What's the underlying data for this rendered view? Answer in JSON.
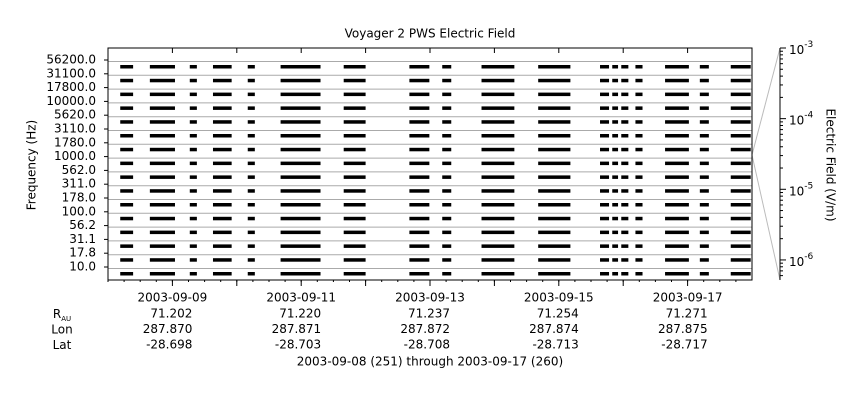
{
  "chart_data": {
    "type": "spectrogram",
    "title": "Voyager 2 PWS Electric Field",
    "ylabel": "Frequency (Hz)",
    "categories": [
      "56200.0",
      "31100.0",
      "17800.0",
      "10000.0",
      "5620.0",
      "3110.0",
      "1780.0",
      "1000.0",
      "562.0",
      "311.0",
      "178.0",
      "100.0",
      "56.2",
      "31.1",
      "17.8",
      "10.0"
    ],
    "color": "#000000",
    "grid": true,
    "xlim": [
      251,
      261
    ],
    "xticks": [
      {
        "value": 252,
        "label": "2003-09-09"
      },
      {
        "value": 254,
        "label": "2003-09-11"
      },
      {
        "value": 256,
        "label": "2003-09-13"
      },
      {
        "value": 258,
        "label": "2003-09-15"
      },
      {
        "value": 260,
        "label": "2003-09-17"
      }
    ],
    "xminor_ticks": [
      253,
      255,
      257,
      259
    ],
    "segments": [
      [
        251.19,
        251.39
      ],
      [
        251.65,
        252.04
      ],
      [
        252.27,
        252.38
      ],
      [
        252.63,
        252.92
      ],
      [
        253.17,
        253.28
      ],
      [
        253.68,
        254.3
      ],
      [
        254.66,
        255.0
      ],
      [
        255.68,
        255.99
      ],
      [
        256.19,
        256.33
      ],
      [
        256.8,
        257.31
      ],
      [
        257.68,
        258.18
      ],
      [
        258.64,
        258.78
      ],
      [
        258.83,
        258.92
      ],
      [
        258.97,
        259.08
      ],
      [
        259.19,
        259.3
      ],
      [
        259.65,
        260.02
      ],
      [
        260.19,
        260.33
      ],
      [
        260.67,
        260.98
      ]
    ],
    "y2label": "Electric Field (V/m)",
    "y2log": true,
    "y2lim": [
      5.2e-07,
      0.001
    ],
    "y2ticks": [
      {
        "value": 0.001,
        "label": "10",
        "exponent": "-3"
      },
      {
        "value": 0.0001,
        "label": "10",
        "exponent": "-4"
      },
      {
        "value": 1e-05,
        "label": "10",
        "exponent": "-5"
      },
      {
        "value": 1e-06,
        "label": "10",
        "exponent": "-6"
      }
    ],
    "ephemeris": [
      {
        "label": "R",
        "subscript": "AU",
        "values": [
          "71.202",
          "71.220",
          "71.237",
          "71.254",
          "71.271"
        ]
      },
      {
        "label": "Lon",
        "values": [
          "287.870",
          "287.871",
          "287.872",
          "287.874",
          "287.875"
        ]
      },
      {
        "label": "Lat",
        "values": [
          "-28.698",
          "-28.703",
          "-28.708",
          "-28.713",
          "-28.717"
        ]
      }
    ],
    "footer": "2003-09-08 (251) through 2003-09-17 (260)"
  }
}
